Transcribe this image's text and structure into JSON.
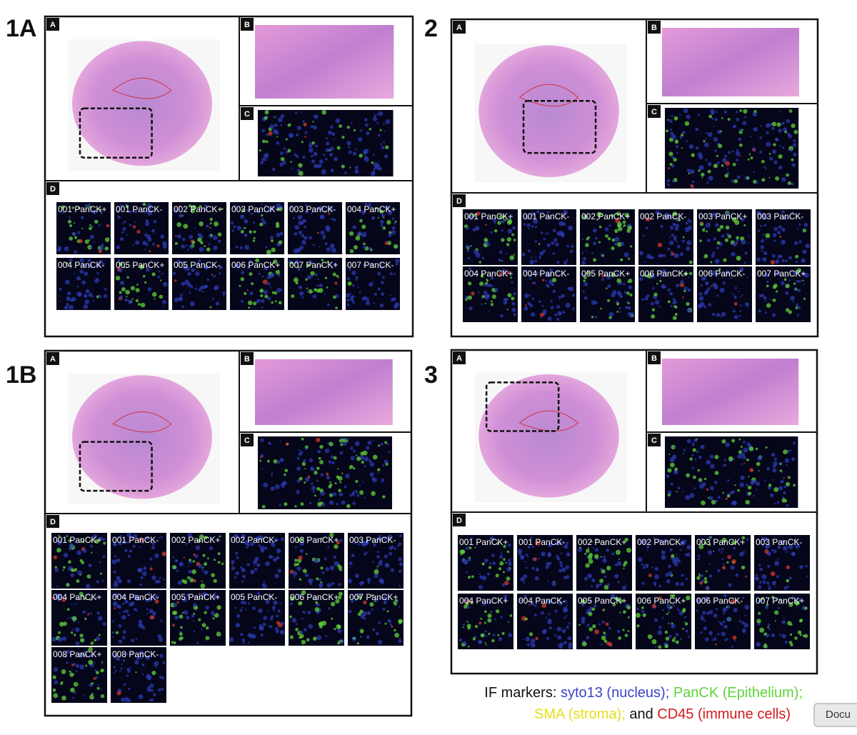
{
  "figures": [
    {
      "label": "1A",
      "panel_labels": [
        "A",
        "B",
        "C",
        "D"
      ],
      "tiles": [
        "001 PanCK+",
        "001 PanCK-",
        "002 PanCK+",
        "003 PanCK+",
        "003 PanCK-",
        "004 PanCK+",
        "004 PanCK-",
        "005 PanCK+",
        "005 PanCK-",
        "006 PanCK+",
        "007 PanCK+",
        "007 PanCK-"
      ]
    },
    {
      "label": "2",
      "panel_labels": [
        "A",
        "B",
        "C",
        "D"
      ],
      "tiles": [
        "001 PanCK+",
        "001 PanCK-",
        "002 PanCK+",
        "002 PanCK-",
        "003 PanCK+",
        "003 PanCK-",
        "004 PanCK+",
        "004 PanCK-",
        "005 PanCK+",
        "006 PanCK+",
        "006 PanCK-",
        "007 PanCK+"
      ]
    },
    {
      "label": "1B",
      "panel_labels": [
        "A",
        "B",
        "C",
        "D"
      ],
      "tiles": [
        "001 PanCK+",
        "001 PanCK-",
        "002 PanCK+",
        "002 PanCK-",
        "003 PanCK+",
        "003 PanCK-",
        "004 PanCK+",
        "004 PanCK-",
        "005 PanCK+",
        "005 PanCK-",
        "006 PanCK+",
        "007 PanCK+",
        "008 PanCK+",
        "008 PanCK-"
      ]
    },
    {
      "label": "3",
      "panel_labels": [
        "A",
        "B",
        "C",
        "D"
      ],
      "tiles": [
        "001 PanCK+",
        "001 PanCK-",
        "002 PanCK+",
        "002 PanCK-",
        "003 PanCK+",
        "003 PanCK-",
        "004 PanCK+",
        "004 PanCK-",
        "005 PanCK+",
        "006 PanCK+",
        "006 PanCK-",
        "007 PanCK+"
      ]
    }
  ],
  "legend": {
    "prefix": "IF markers:",
    "nucleus": "syto13 (nucleus);",
    "epithelium": "PanCK (Epithelium);",
    "stroma": "SMA (stroma);",
    "and": "and",
    "immune": "CD45 (immune cells)"
  },
  "tooltip": "Docu"
}
